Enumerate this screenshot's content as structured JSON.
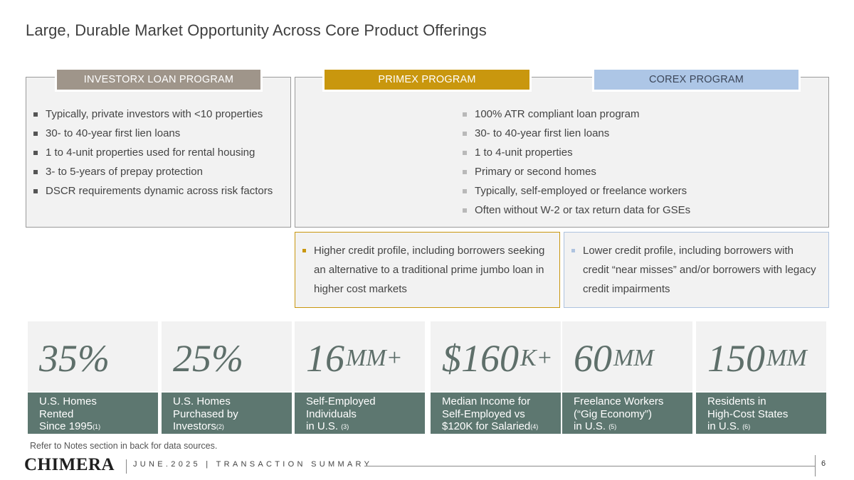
{
  "title": "Large, Durable Market Opportunity Across Core Product Offerings",
  "programs": {
    "investorx": {
      "label": "INVESTORX LOAN PROGRAM",
      "bullets": [
        "Typically, private investors with <10 properties",
        "30- to 40-year first lien loans",
        "1 to 4-unit properties used for rental housing",
        "3- to 5-years of prepay protection",
        "DSCR requirements dynamic across risk factors"
      ]
    },
    "primex": {
      "label": "PRIMEX PROGRAM"
    },
    "corex": {
      "label": "COREX PROGRAM"
    },
    "shared_bullets": [
      "100% ATR compliant loan program",
      "30- to 40-year first lien loans",
      "1 to 4-unit properties",
      "Primary or second homes",
      "Typically, self-employed or freelance workers",
      "Often without W-2 or tax return data for GSEs"
    ],
    "primex_credit": "Higher credit profile, including borrowers seeking an alternative to a traditional prime jumbo loan in higher cost markets",
    "corex_credit": "Lower credit profile, including borrowers with credit “near misses” and/or borrowers with legacy credit impairments"
  },
  "stats": [
    {
      "number": "35%",
      "suffix": "",
      "label_lines": [
        "U.S. Homes",
        "Rented",
        "Since 1995"
      ],
      "note": "(1)"
    },
    {
      "number": "25%",
      "suffix": "",
      "label_lines": [
        "U.S. Homes",
        "Purchased by",
        "Investors"
      ],
      "note": "(2)"
    },
    {
      "number": "16",
      "suffix": "MM+",
      "label_lines": [
        "Self-Employed",
        "Individuals",
        "in U.S. "
      ],
      "note": "(3)"
    },
    {
      "number": "$160",
      "suffix": "K+",
      "label_lines": [
        "Median Income for",
        "Self-Employed vs",
        "$120K for Salaried"
      ],
      "note": "(4)"
    },
    {
      "number": "60",
      "suffix": "MM",
      "label_lines": [
        "Freelance Workers",
        "(“Gig Economy”)",
        "in U.S. "
      ],
      "note": "(5)"
    },
    {
      "number": "150",
      "suffix": "MM",
      "label_lines": [
        "Residents in",
        "High-Cost States",
        "in U.S. "
      ],
      "note": "(6)"
    }
  ],
  "footnote": "Refer to Notes section in back for data sources.",
  "footer": {
    "logo": "CHIMERA",
    "text": "JUNE.2025  |  TRANSACTION SUMMARY",
    "page": "6"
  }
}
